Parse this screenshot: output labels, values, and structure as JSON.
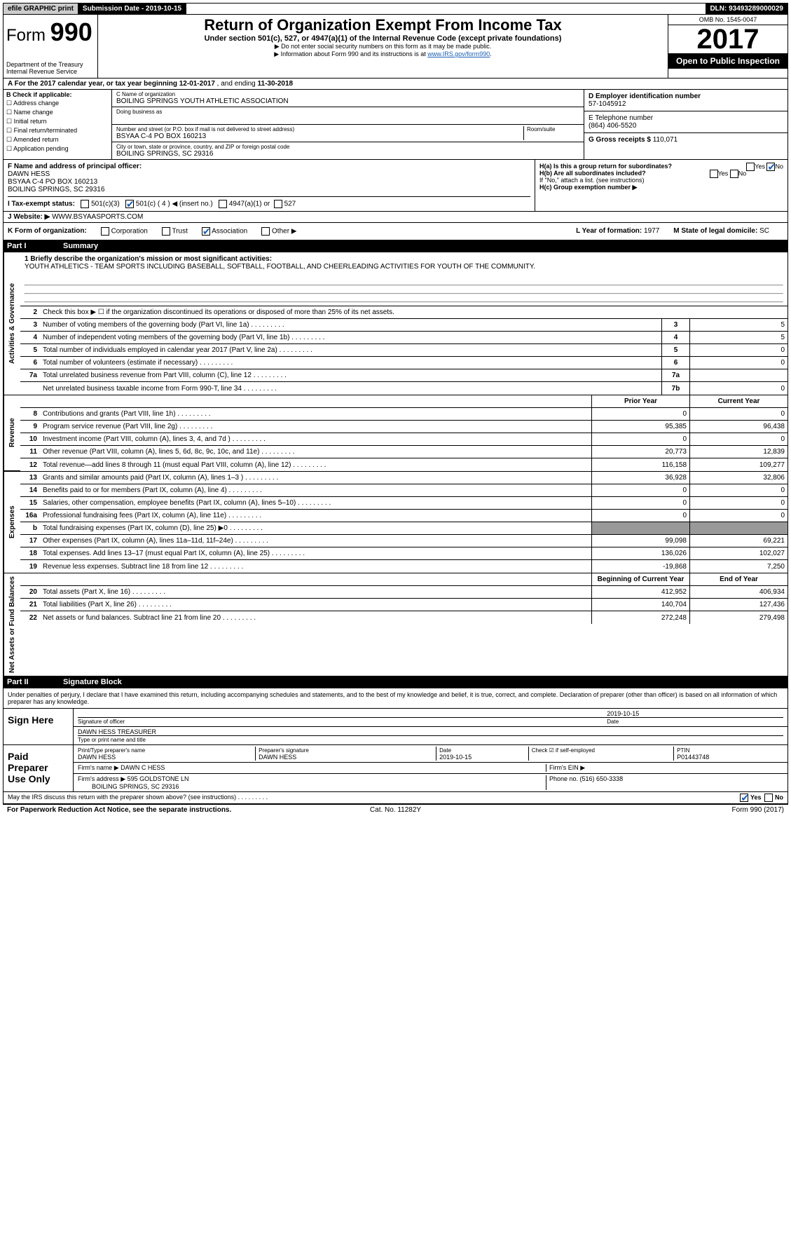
{
  "topbar": {
    "efile": "efile GRAPHIC print",
    "subdate_lbl": "Submission Date - ",
    "subdate": "2019-10-15",
    "dln_lbl": "DLN: ",
    "dln": "93493289000029"
  },
  "header": {
    "form": "Form",
    "num": "990",
    "dept": "Department of the Treasury",
    "irs": "Internal Revenue Service",
    "title": "Return of Organization Exempt From Income Tax",
    "subtitle": "Under section 501(c), 527, or 4947(a)(1) of the Internal Revenue Code (except private foundations)",
    "note1": "▶ Do not enter social security numbers on this form as it may be made public.",
    "note2a": "▶ Information about Form 990 and its instructions is at ",
    "note2_link": "www.IRS.gov/form990",
    "note2b": ".",
    "omb": "OMB No. 1545-0047",
    "year": "2017",
    "open": "Open to Public Inspection"
  },
  "lineA": {
    "text_a": "A For the 2017 calendar year, or tax year beginning ",
    "begin": "12-01-2017",
    "text_b": "     , and ending ",
    "end": "11-30-2018"
  },
  "colB": {
    "label": "B Check if applicable:",
    "items": [
      "Address change",
      "Name change",
      "Initial return",
      "Final return/terminated",
      "Amended return",
      "Application pending"
    ]
  },
  "colC": {
    "name_lbl": "C Name of organization",
    "name": "BOILING SPRINGS YOUTH ATHLETIC ASSOCIATION",
    "dba_lbl": "Doing business as",
    "addr_lbl": "Number and street (or P.O. box if mail is not delivered to street address)",
    "room_lbl": "Room/suite",
    "addr": "BSYAA C-4 PO BOX 160213",
    "city_lbl": "City or town, state or province, country, and ZIP or foreign postal code",
    "city": "BOILING SPRINGS, SC  29316"
  },
  "colD": {
    "lbl": "D Employer identification number",
    "val": "57-1045912"
  },
  "colE": {
    "lbl": "E Telephone number",
    "val": "(864) 406-5520"
  },
  "colG": {
    "lbl": "G Gross receipts $ ",
    "val": "110,071"
  },
  "rowF": {
    "lbl": "F  Name and address of principal officer:",
    "name": "DAWN HESS",
    "addr1": "BSYAA C-4 PO BOX 160213",
    "addr2": "BOILING SPRINGS, SC  29316"
  },
  "rowH": {
    "ha": "H(a)  Is this a group return for subordinates?",
    "hb": "H(b)  Are all subordinates included?",
    "hb_note": "If \"No,\" attach a list. (see instructions)",
    "hc": "H(c)  Group exemption number ▶",
    "yes": "Yes",
    "no": "No"
  },
  "rowI": {
    "lbl": "I  Tax-exempt status:",
    "o1": "501(c)(3)",
    "o2": "501(c) ( 4 ) ◀ (insert no.)",
    "o3": "4947(a)(1) or",
    "o4": "527"
  },
  "rowJ": {
    "lbl": "J  Website: ▶ ",
    "val": "WWW.BSYAASPORTS.COM"
  },
  "rowK": {
    "lbl": "K Form of organization:",
    "corp": "Corporation",
    "trust": "Trust",
    "assoc": "Association",
    "other": "Other ▶",
    "l_lbl": "L Year of formation: ",
    "l_val": "1977",
    "m_lbl": "M State of legal domicile: ",
    "m_val": "SC"
  },
  "part1": {
    "title": "Part I",
    "sub": "Summary"
  },
  "summary": {
    "s1_lbl": "1 Briefly describe the organization's mission or most significant activities:",
    "s1_txt": "YOUTH ATHLETICS - TEAM SPORTS INCLUDING BASEBALL, SOFTBALL, FOOTBALL, AND CHEERLEADING ACTIVITIES FOR YOUTH OF THE COMMUNITY.",
    "s2": "Check this box ▶ ☐  if the organization discontinued its operations or disposed of more than 25% of its net assets.",
    "lines_gov": [
      {
        "n": "3",
        "t": "Number of voting members of the governing body (Part VI, line 1a)",
        "b": "3",
        "v": "5"
      },
      {
        "n": "4",
        "t": "Number of independent voting members of the governing body (Part VI, line 1b)",
        "b": "4",
        "v": "5"
      },
      {
        "n": "5",
        "t": "Total number of individuals employed in calendar year 2017 (Part V, line 2a)",
        "b": "5",
        "v": "0"
      },
      {
        "n": "6",
        "t": "Total number of volunteers (estimate if necessary)",
        "b": "6",
        "v": "0"
      },
      {
        "n": "7a",
        "t": "Total unrelated business revenue from Part VIII, column (C), line 12",
        "b": "7a",
        "v": ""
      },
      {
        "n": "",
        "t": "Net unrelated business taxable income from Form 990-T, line 34",
        "b": "7b",
        "v": "0"
      }
    ],
    "hdr_prior": "Prior Year",
    "hdr_cur": "Current Year",
    "rev": [
      {
        "n": "8",
        "t": "Contributions and grants (Part VIII, line 1h)",
        "p": "0",
        "c": "0"
      },
      {
        "n": "9",
        "t": "Program service revenue (Part VIII, line 2g)",
        "p": "95,385",
        "c": "96,438"
      },
      {
        "n": "10",
        "t": "Investment income (Part VIII, column (A), lines 3, 4, and 7d )",
        "p": "0",
        "c": "0"
      },
      {
        "n": "11",
        "t": "Other revenue (Part VIII, column (A), lines 5, 6d, 8c, 9c, 10c, and 11e)",
        "p": "20,773",
        "c": "12,839"
      },
      {
        "n": "12",
        "t": "Total revenue—add lines 8 through 11 (must equal Part VIII, column (A), line 12)",
        "p": "116,158",
        "c": "109,277"
      }
    ],
    "exp": [
      {
        "n": "13",
        "t": "Grants and similar amounts paid (Part IX, column (A), lines 1–3 )",
        "p": "36,928",
        "c": "32,806"
      },
      {
        "n": "14",
        "t": "Benefits paid to or for members (Part IX, column (A), line 4)",
        "p": "0",
        "c": "0"
      },
      {
        "n": "15",
        "t": "Salaries, other compensation, employee benefits (Part IX, column (A), lines 5–10)",
        "p": "0",
        "c": "0"
      },
      {
        "n": "16a",
        "t": "Professional fundraising fees (Part IX, column (A), line 11e)",
        "p": "0",
        "c": "0"
      },
      {
        "n": "b",
        "t": "Total fundraising expenses (Part IX, column (D), line 25) ▶0",
        "p": "",
        "c": "",
        "grey": true
      },
      {
        "n": "17",
        "t": "Other expenses (Part IX, column (A), lines 11a–11d, 11f–24e)",
        "p": "99,098",
        "c": "69,221"
      },
      {
        "n": "18",
        "t": "Total expenses. Add lines 13–17 (must equal Part IX, column (A), line 25)",
        "p": "136,026",
        "c": "102,027"
      },
      {
        "n": "19",
        "t": "Revenue less expenses. Subtract line 18 from line 12",
        "p": "-19,868",
        "c": "7,250"
      }
    ],
    "hdr_beg": "Beginning of Current Year",
    "hdr_end": "End of Year",
    "net": [
      {
        "n": "20",
        "t": "Total assets (Part X, line 16)",
        "p": "412,952",
        "c": "406,934"
      },
      {
        "n": "21",
        "t": "Total liabilities (Part X, line 26)",
        "p": "140,704",
        "c": "127,436"
      },
      {
        "n": "22",
        "t": "Net assets or fund balances. Subtract line 21 from line 20",
        "p": "272,248",
        "c": "279,498"
      }
    ],
    "side_gov": "Activities & Governance",
    "side_rev": "Revenue",
    "side_exp": "Expenses",
    "side_net": "Net Assets or Fund Balances"
  },
  "part2": {
    "title": "Part II",
    "sub": "Signature Block"
  },
  "sig": {
    "perjury": "Under penalties of perjury, I declare that I have examined this return, including accompanying schedules and statements, and to the best of my knowledge and belief, it is true, correct, and complete. Declaration of preparer (other than officer) is based on all information of which preparer has any knowledge.",
    "sign_here": "Sign Here",
    "sig_officer": "Signature of officer",
    "date_lbl": "Date",
    "date": "2019-10-15",
    "name_title": "DAWN HESS TREASURER",
    "type_print": "Type or print name and title",
    "paid": "Paid Preparer Use Only",
    "prep_name_lbl": "Print/Type preparer's name",
    "prep_name": "DAWN HESS",
    "prep_sig_lbl": "Preparer's signature",
    "prep_sig": "DAWN HESS",
    "prep_date_lbl": "Date",
    "prep_date": "2019-10-15",
    "check_self": "Check ☑ if self-employed",
    "ptin_lbl": "PTIN",
    "ptin": "P01443748",
    "firm_name_lbl": "Firm's name     ▶ ",
    "firm_name": "DAWN C HESS",
    "firm_ein": "Firm's EIN ▶",
    "firm_addr_lbl": "Firm's address ▶ ",
    "firm_addr": "595 GOLDSTONE LN",
    "firm_addr2": "BOILING SPRINGS, SC  29316",
    "phone_lbl": "Phone no. ",
    "phone": "(516) 650-3338",
    "discuss": "May the IRS discuss this return with the preparer shown above? (see instructions)"
  },
  "footer": {
    "pra": "For Paperwork Reduction Act Notice, see the separate instructions.",
    "cat": "Cat. No. 11282Y",
    "form": "Form 990 (2017)"
  }
}
